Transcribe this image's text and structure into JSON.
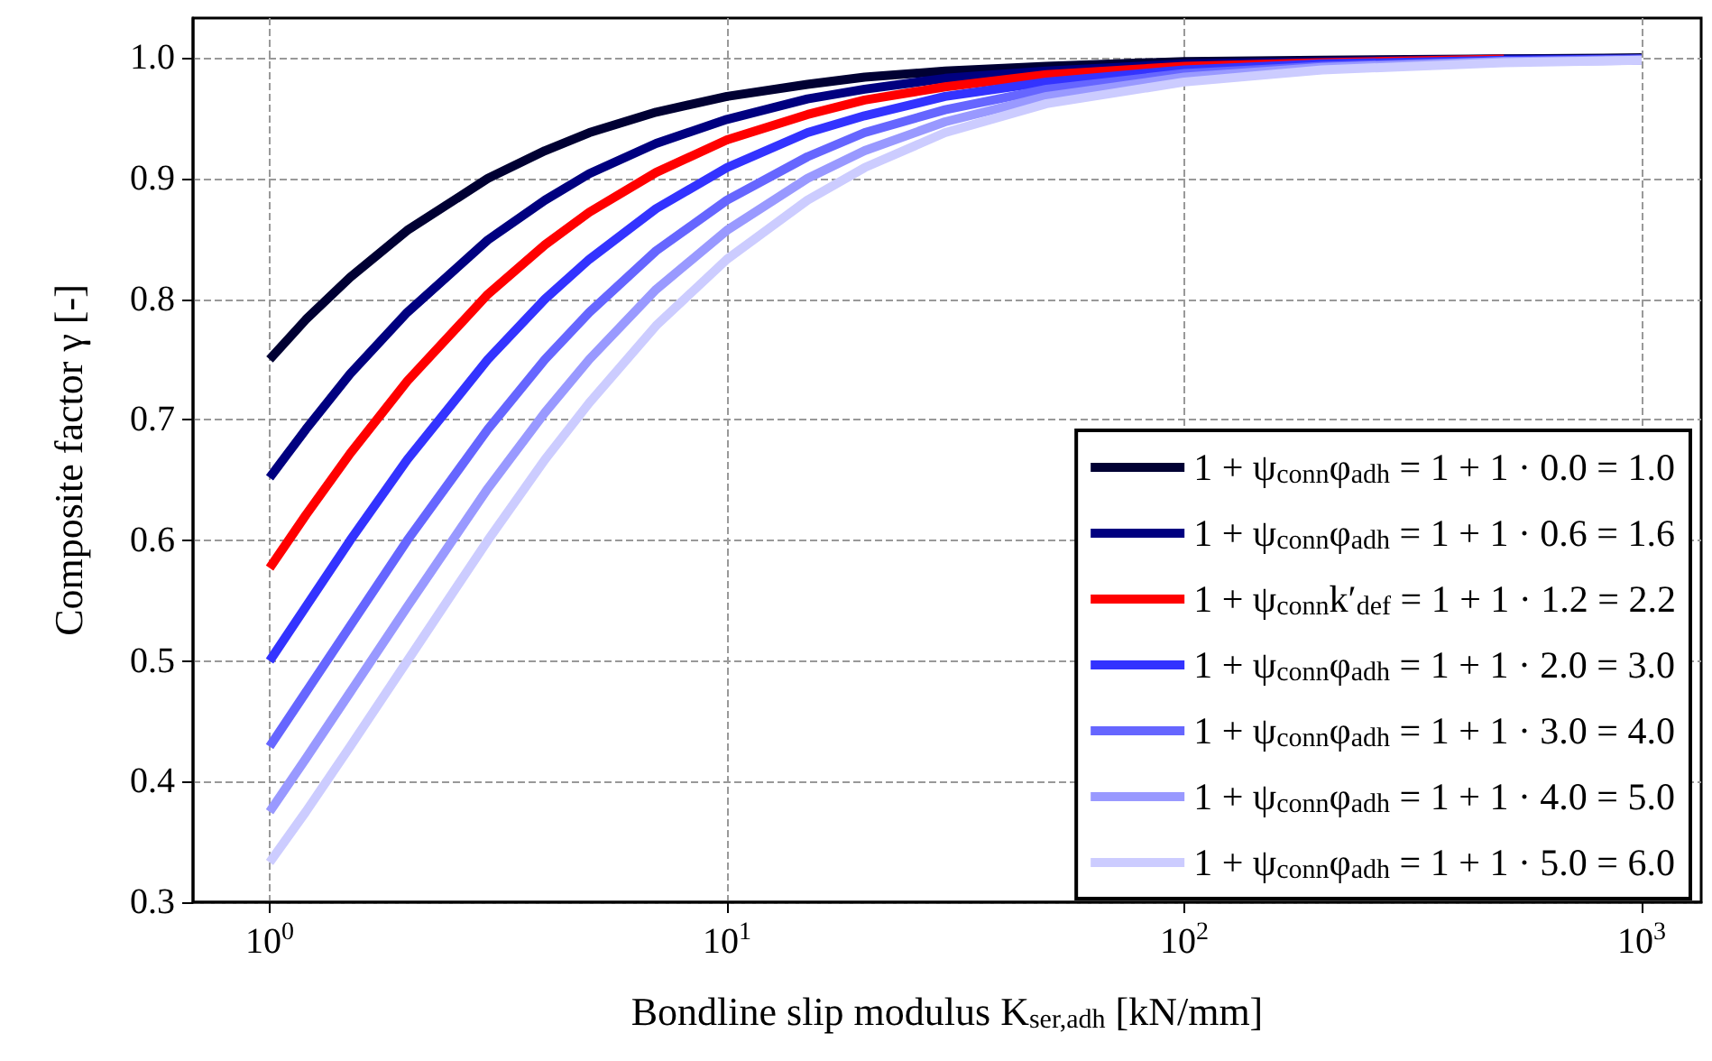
{
  "chart_data": {
    "type": "line",
    "xlabel": "Bondline slip modulus K$_{ser,adh}$ [kN/mm]",
    "ylabel": "Composite factor γ [-]",
    "x": [
      1,
      1.2,
      1.5,
      2,
      3,
      4,
      5,
      7,
      10,
      15,
      20,
      30,
      50,
      100,
      200,
      500,
      1000
    ],
    "series": [
      {
        "name": "1 + ψ$_{conn}$φ$_{adh}$ = 1 + 1 · 0.0 = 1.0",
        "color": "#000033",
        "values": [
          0.75,
          0.783,
          0.818,
          0.857,
          0.9,
          0.923,
          0.938,
          0.955,
          0.968,
          0.978,
          0.984,
          0.989,
          0.993,
          0.997,
          0.998,
          null,
          1.0
        ]
      },
      {
        "name": "1 + ψ$_{conn}$φ$_{adh}$ = 1 + 1 · 0.6 = 1.6",
        "color": "#000080",
        "values": [
          0.652,
          0.692,
          0.738,
          0.789,
          0.849,
          0.882,
          0.904,
          0.929,
          0.949,
          0.966,
          0.974,
          0.983,
          0.989,
          0.995,
          0.997,
          0.999,
          0.999
        ]
      },
      {
        "name": "1 + ψ$_{conn}$k′$_{def}$ = 1 + 1 · 1.2 = 2.2",
        "color": "#ff0000",
        "values": [
          0.577,
          0.621,
          0.672,
          0.732,
          0.804,
          0.845,
          0.872,
          0.905,
          0.932,
          0.953,
          0.965,
          0.976,
          0.986,
          0.993,
          0.996,
          0.999,
          null
        ]
      },
      {
        "name": "1 + ψ$_{conn}$φ$_{adh}$ = 1 + 1 · 2.0 = 3.0",
        "color": "#3333ff",
        "values": [
          0.5,
          0.545,
          0.6,
          0.667,
          0.75,
          0.8,
          0.833,
          0.875,
          0.909,
          0.938,
          0.952,
          0.968,
          0.98,
          0.99,
          0.995,
          0.998,
          0.999
        ]
      },
      {
        "name": "1 + ψ$_{conn}$φ$_{adh}$ = 1 + 1 · 3.0 = 4.0",
        "color": "#6666ff",
        "values": [
          0.429,
          0.474,
          0.529,
          0.6,
          0.692,
          0.75,
          0.789,
          0.84,
          0.882,
          0.918,
          0.938,
          0.957,
          0.974,
          0.987,
          0.993,
          0.997,
          0.999
        ]
      },
      {
        "name": "1 + ψ$_{conn}$φ$_{adh}$ = 1 + 1 · 4.0 = 5.0",
        "color": "#9999ff",
        "values": [
          0.375,
          0.419,
          0.474,
          0.545,
          0.643,
          0.706,
          0.75,
          0.808,
          0.857,
          0.9,
          0.923,
          0.947,
          0.968,
          0.984,
          0.992,
          0.997,
          0.998
        ]
      },
      {
        "name": "1 + ψ$_{conn}$φ$_{adh}$ = 1 + 1 · 5.0 = 6.0",
        "color": "#ccccff",
        "values": [
          0.333,
          0.375,
          0.429,
          0.5,
          0.6,
          0.667,
          0.714,
          0.778,
          0.833,
          0.882,
          0.909,
          0.938,
          0.962,
          0.98,
          0.99,
          0.996,
          0.998
        ]
      }
    ],
    "log": "x",
    "xlim": [
      0.68,
      1350
    ],
    "xticks": [
      {
        "value": 1,
        "label": "10$^{0}$"
      },
      {
        "value": 10,
        "label": "10$^{1}$"
      },
      {
        "value": 100,
        "label": "10$^{2}$"
      },
      {
        "value": 1000,
        "label": "10$^{3}$"
      }
    ],
    "ylim": [
      0.3,
      1.033
    ],
    "yticks": [
      0.3,
      0.4,
      0.5,
      0.6,
      0.7,
      0.8,
      0.9,
      {
        "value": 1,
        "label": "1.0"
      }
    ],
    "grid": true,
    "legend": "bottom right",
    "marker": "none",
    "line_style": "solid"
  }
}
